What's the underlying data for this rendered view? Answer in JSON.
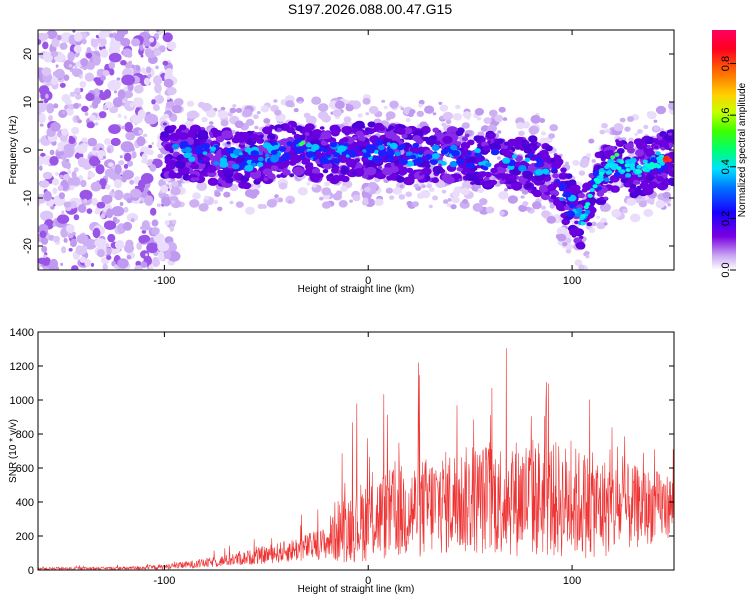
{
  "title": "S197.2026.088.00.47.G15",
  "chart_data": [
    {
      "type": "heatmap",
      "xlabel": "Height of straight line (km)",
      "ylabel": "Frequency (Hz)",
      "xlim": [
        -162,
        150
      ],
      "ylim": [
        -25,
        25
      ],
      "xticks": [
        -100,
        0,
        100
      ],
      "yticks": [
        -20,
        -10,
        0,
        10,
        20
      ],
      "colorbar": {
        "label": "Normalized spectral amplitude",
        "range": [
          0.0,
          0.93
        ],
        "ticks": [
          0.0,
          0.2,
          0.4,
          0.6,
          0.8
        ],
        "tick_labels": [
          "0.0",
          "0.2",
          "0.4",
          "0.6",
          "0.8"
        ]
      },
      "ridge": {
        "x": [
          -100,
          -80,
          -60,
          -40,
          -20,
          0,
          20,
          40,
          60,
          80,
          90,
          100,
          105,
          110,
          120,
          130,
          140,
          148
        ],
        "freq": [
          0,
          -1,
          -2,
          0,
          -1,
          0,
          -1,
          -1,
          -2,
          -3,
          -5,
          -12,
          -15,
          -8,
          -3,
          -4,
          -3,
          -1.5
        ]
      }
    },
    {
      "type": "line",
      "xlabel": "Height of straight line (km)",
      "ylabel": "SNR (10 * v/v)",
      "xlim": [
        -162,
        150
      ],
      "ylim": [
        0,
        1400
      ],
      "xticks": [
        -100,
        0,
        100
      ],
      "yticks": [
        0,
        200,
        400,
        600,
        800,
        1000,
        1200,
        1400
      ],
      "color": "#ee3333",
      "envelope": {
        "x": [
          -162,
          -120,
          -100,
          -80,
          -60,
          -40,
          -20,
          -17,
          0,
          20,
          40,
          60,
          80,
          100,
          120,
          150
        ],
        "base": [
          8,
          10,
          18,
          40,
          70,
          110,
          160,
          220,
          300,
          350,
          400,
          420,
          430,
          400,
          360,
          380
        ],
        "spread": [
          12,
          15,
          25,
          45,
          70,
          110,
          160,
          300,
          420,
          480,
          520,
          560,
          600,
          560,
          480,
          300
        ]
      }
    }
  ]
}
